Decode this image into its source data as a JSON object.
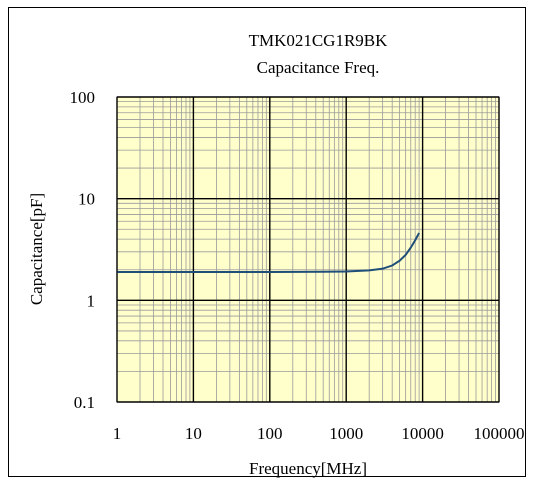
{
  "chart_data": {
    "type": "line",
    "title": "TMK021CG1R9BK",
    "subtitle": "Capacitance Freq.",
    "xlabel": "Frequency[MHz]",
    "ylabel": "Capacitance[pF]",
    "x_scale": "log",
    "y_scale": "log",
    "xlim": [
      1,
      100000
    ],
    "ylim": [
      0.1,
      100
    ],
    "x_ticks": [
      "1",
      "10",
      "100",
      "1000",
      "10000",
      "100000"
    ],
    "y_ticks": [
      "100",
      "10",
      "1",
      "0.1"
    ],
    "grid": true,
    "legend": "none",
    "colors": {
      "plot_bg": "#ffffcc",
      "major_grid": "#000000",
      "minor_grid": "#9a9a9a",
      "line": "#1f4e79"
    },
    "series": [
      {
        "x": [
          1,
          10,
          100,
          500,
          1000,
          2000,
          3000,
          4000,
          5000,
          6000,
          7000,
          8000,
          9000
        ],
        "y": [
          1.9,
          1.9,
          1.9,
          1.91,
          1.92,
          1.97,
          2.05,
          2.2,
          2.45,
          2.8,
          3.3,
          3.9,
          4.6
        ]
      }
    ]
  }
}
